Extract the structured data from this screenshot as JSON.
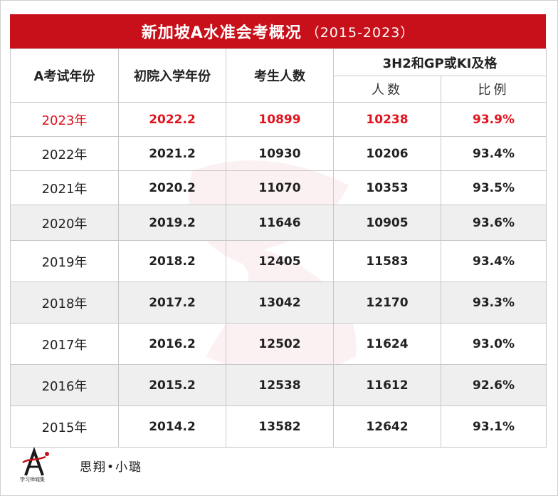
{
  "title": {
    "main": "新加坡A水准会考概况",
    "sub": "（2015-2023）"
  },
  "headers": {
    "col1": "A考试年份",
    "col2": "初院入学年份",
    "col3": "考生人数",
    "group": "3H2和GP或KI及格",
    "sub1": "人数",
    "sub2": "比例"
  },
  "rows": [
    {
      "exam_year": "2023年",
      "entry_year": "2022.2",
      "candidates": "10899",
      "passed": "10238",
      "rate": "93.9%"
    },
    {
      "exam_year": "2022年",
      "entry_year": "2021.2",
      "candidates": "10930",
      "passed": "10206",
      "rate": "93.4%"
    },
    {
      "exam_year": "2021年",
      "entry_year": "2020.2",
      "candidates": "11070",
      "passed": "10353",
      "rate": "93.5%"
    },
    {
      "exam_year": "2020年",
      "entry_year": "2019.2",
      "candidates": "11646",
      "passed": "10905",
      "rate": "93.6%"
    },
    {
      "exam_year": "2019年",
      "entry_year": "2018.2",
      "candidates": "12405",
      "passed": "11583",
      "rate": "93.4%"
    },
    {
      "exam_year": "2018年",
      "entry_year": "2017.2",
      "candidates": "13042",
      "passed": "12170",
      "rate": "93.3%"
    },
    {
      "exam_year": "2017年",
      "entry_year": "2016.2",
      "candidates": "12502",
      "passed": "11624",
      "rate": "93.0%"
    },
    {
      "exam_year": "2016年",
      "entry_year": "2015.2",
      "candidates": "12538",
      "passed": "11612",
      "rate": "92.6%"
    },
    {
      "exam_year": "2015年",
      "entry_year": "2014.2",
      "candidates": "13582",
      "passed": "12642",
      "rate": "93.1%"
    }
  ],
  "footer": {
    "logo_caption": "学习师城集",
    "signature": "思翔•小璐"
  },
  "colors": {
    "title_bg": "#c8101a",
    "highlight_text": "#e0141e",
    "row_shade": "#efefef"
  },
  "icons": {
    "logo": "letter-a-logo-icon",
    "watermark": "brush-watermark-icon"
  }
}
